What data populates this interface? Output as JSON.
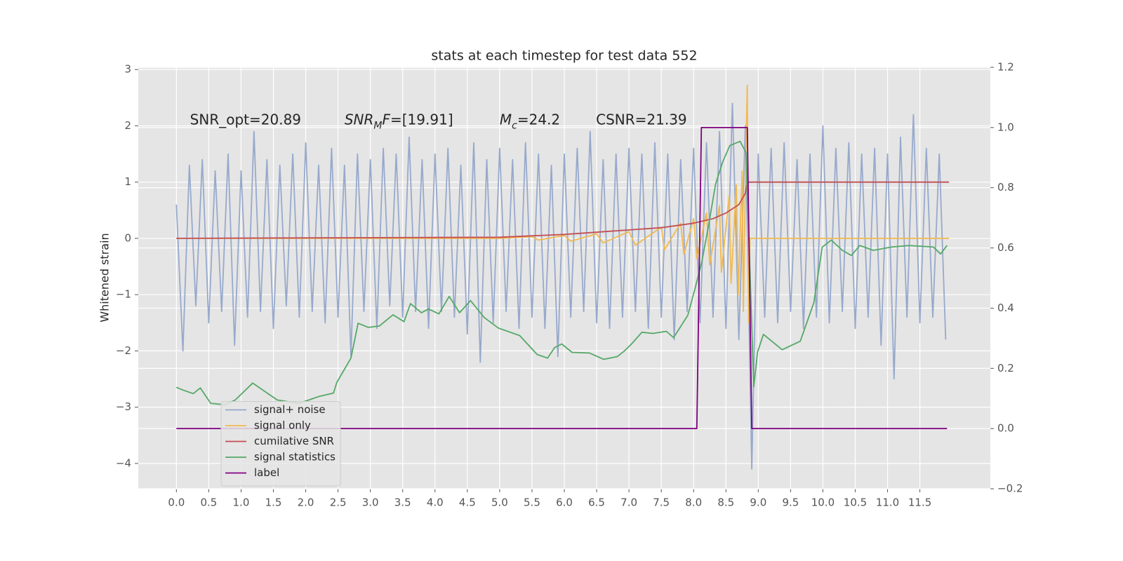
{
  "chart_data": {
    "type": "line",
    "title": "stats at each timestep for test data 552",
    "ylabel": "Whitened strain",
    "xlim": [
      -0.59,
      12.59
    ],
    "ylim": [
      -4.45,
      3.04
    ],
    "y2lim": [
      -0.2,
      1.2
    ],
    "xticks": [
      {
        "value": 0,
        "label": "0.0"
      },
      0.5,
      {
        "value": 1,
        "label": "1.0"
      },
      1.5,
      {
        "value": 2,
        "label": "2.0"
      },
      2.5,
      {
        "value": 3,
        "label": "3.0"
      },
      3.5,
      {
        "value": 4,
        "label": "4.0"
      },
      4.5,
      {
        "value": 5,
        "label": "5.0"
      },
      5.5,
      {
        "value": 6,
        "label": "6.0"
      },
      6.5,
      {
        "value": 7,
        "label": "7.0"
      },
      7.5,
      {
        "value": 8,
        "label": "8.0"
      },
      8.5,
      {
        "value": 9,
        "label": "9.0"
      },
      9.5,
      {
        "value": 10,
        "label": "10.0"
      },
      10.5,
      {
        "value": 11,
        "label": "11.0"
      },
      11.5
    ],
    "yticks": [
      {
        "value": -4,
        "label": "−4"
      },
      {
        "value": -3,
        "label": "−3"
      },
      {
        "value": -2,
        "label": "−2"
      },
      {
        "value": -1,
        "label": "−1"
      },
      0,
      1,
      2,
      3
    ],
    "y2ticks": [
      {
        "value": -0.2,
        "label": "−0.2"
      },
      {
        "value": 0,
        "label": "0.0"
      },
      0.2,
      0.4,
      0.6,
      0.8,
      {
        "value": 1,
        "label": "1.0"
      },
      1.2
    ],
    "grid": true,
    "legend": "lower left",
    "annotations": [
      {
        "x": 0.21,
        "y": 2.0,
        "parts": [
          {
            "text": "SNR_opt=20.89"
          }
        ]
      },
      {
        "x": 2.6,
        "y": 2.0,
        "parts": [
          {
            "text": "SNR",
            "italic": true
          },
          {
            "text": "M",
            "italic": true,
            "sub": true
          },
          {
            "text": "F",
            "italic": true
          },
          {
            "text": "=[19.91]"
          }
        ]
      },
      {
        "x": 5.0,
        "y": 2.0,
        "parts": [
          {
            "text": "M",
            "italic": true
          },
          {
            "text": "c",
            "italic": true,
            "sub": true
          },
          {
            "text": "=24.2"
          }
        ]
      },
      {
        "x": 6.49,
        "y": 2.0,
        "parts": [
          {
            "text": "CSNR=21.39"
          }
        ]
      }
    ],
    "series": [
      {
        "name": "signal+ noise",
        "color": "#97a9cc",
        "x": [
          0.0,
          0.1,
          0.2,
          0.3,
          0.4,
          0.5,
          0.6,
          0.7,
          0.8,
          0.9,
          1.0,
          1.1,
          1.2,
          1.3,
          1.4,
          1.5,
          1.6,
          1.7,
          1.8,
          1.9,
          2.0,
          2.1,
          2.2,
          2.3,
          2.4,
          2.5,
          2.6,
          2.7,
          2.8,
          2.9,
          3.0,
          3.1,
          3.2,
          3.3,
          3.4,
          3.5,
          3.6,
          3.7,
          3.8,
          3.9,
          4.0,
          4.1,
          4.2,
          4.3,
          4.4,
          4.5,
          4.6,
          4.7,
          4.8,
          4.9,
          5.0,
          5.1,
          5.2,
          5.3,
          5.4,
          5.5,
          5.6,
          5.7,
          5.8,
          5.9,
          6.0,
          6.1,
          6.2,
          6.3,
          6.4,
          6.5,
          6.6,
          6.7,
          6.8,
          6.9,
          7.0,
          7.1,
          7.2,
          7.3,
          7.4,
          7.5,
          7.6,
          7.7,
          7.8,
          7.9,
          8.0,
          8.1,
          8.2,
          8.3,
          8.4,
          8.5,
          8.6,
          8.7,
          8.8,
          8.9,
          9.0,
          9.1,
          9.2,
          9.3,
          9.4,
          9.5,
          9.6,
          9.7,
          9.8,
          9.9,
          10.0,
          10.1,
          10.2,
          10.3,
          10.4,
          10.5,
          10.6,
          10.7,
          10.8,
          10.9,
          11.0,
          11.1,
          11.2,
          11.3,
          11.4,
          11.5,
          11.6,
          11.7,
          11.8,
          11.9
        ],
        "values": [
          0.6,
          -2.0,
          1.3,
          -1.2,
          1.4,
          -1.5,
          1.2,
          -1.3,
          1.5,
          -1.9,
          1.2,
          -1.4,
          1.9,
          -1.3,
          1.4,
          -1.6,
          1.3,
          -1.2,
          1.5,
          -1.4,
          1.7,
          -1.3,
          1.3,
          -1.5,
          1.6,
          -1.4,
          1.3,
          -2.1,
          1.5,
          -1.3,
          1.4,
          -1.6,
          1.6,
          -1.2,
          1.5,
          -1.4,
          1.8,
          -1.3,
          1.4,
          -1.6,
          1.5,
          -1.3,
          1.6,
          -1.4,
          1.3,
          -1.7,
          1.7,
          -2.2,
          1.4,
          -1.5,
          1.6,
          -1.3,
          1.4,
          -1.6,
          1.7,
          -1.4,
          1.5,
          -1.6,
          1.3,
          -2.1,
          1.5,
          -1.4,
          1.6,
          -1.3,
          1.9,
          -1.5,
          1.4,
          -1.6,
          1.5,
          -1.4,
          1.6,
          -1.3,
          1.5,
          -1.6,
          1.7,
          -1.4,
          1.5,
          -1.8,
          1.4,
          -1.3,
          1.6,
          -1.5,
          1.7,
          -1.4,
          1.9,
          -1.6,
          2.4,
          -1.8,
          2.0,
          -4.1,
          1.5,
          -1.4,
          1.6,
          -1.5,
          1.7,
          -1.3,
          1.4,
          -1.6,
          1.5,
          -1.4,
          2.0,
          -1.5,
          1.6,
          -1.3,
          1.7,
          -1.6,
          1.5,
          -1.4,
          1.6,
          -1.9,
          1.5,
          -2.5,
          1.8,
          -1.4,
          2.2,
          -1.5,
          1.6,
          -1.4,
          1.5,
          -1.8
        ]
      },
      {
        "name": "signal only",
        "color": "#f2b94f",
        "x": [
          0.0,
          5.0,
          5.5,
          5.6,
          6.0,
          6.1,
          6.5,
          6.6,
          7.0,
          7.1,
          7.5,
          7.55,
          7.8,
          7.85,
          8.0,
          8.05,
          8.2,
          8.25,
          8.4,
          8.43,
          8.55,
          8.58,
          8.66,
          8.69,
          8.75,
          8.77,
          8.81,
          8.83,
          8.85,
          8.87,
          11.95
        ],
        "values": [
          0,
          0,
          0.03,
          -0.03,
          0.05,
          -0.05,
          0.08,
          -0.08,
          0.12,
          -0.12,
          0.2,
          -0.2,
          0.27,
          -0.28,
          0.35,
          -0.36,
          0.45,
          -0.47,
          0.58,
          -0.6,
          0.75,
          -0.8,
          0.95,
          -1.0,
          1.2,
          -1.3,
          1.6,
          2.72,
          -1.5,
          0,
          0
        ]
      },
      {
        "name": "cumilative SNR",
        "color": "#c44e52",
        "x": [
          0,
          5,
          6,
          7,
          7.5,
          8,
          8.3,
          8.5,
          8.7,
          8.8,
          8.83,
          11.95
        ],
        "values": [
          0,
          0.02,
          0.07,
          0.15,
          0.19,
          0.27,
          0.35,
          0.45,
          0.6,
          0.8,
          1.0,
          1.0
        ]
      },
      {
        "name": "signal statistics",
        "color": "#55a868",
        "axis": "y2",
        "x": [
          0.0,
          0.1,
          0.26,
          0.37,
          0.53,
          0.75,
          0.91,
          1.18,
          1.56,
          1.89,
          2.05,
          2.21,
          2.43,
          2.48,
          2.7,
          2.81,
          2.97,
          3.14,
          3.35,
          3.52,
          3.62,
          3.79,
          3.9,
          4.06,
          4.22,
          4.38,
          4.55,
          4.76,
          4.98,
          5.31,
          5.58,
          5.74,
          5.85,
          5.96,
          6.12,
          6.39,
          6.61,
          6.82,
          6.93,
          7.04,
          7.2,
          7.37,
          7.58,
          7.69,
          7.91,
          8.02,
          8.13,
          8.23,
          8.34,
          8.45,
          8.56,
          8.72,
          8.81,
          8.86,
          8.93,
          8.99,
          9.08,
          9.37,
          9.65,
          9.86,
          9.99,
          10.13,
          10.3,
          10.44,
          10.57,
          10.78,
          11.06,
          11.33,
          11.71,
          11.82,
          11.92
        ],
        "values": [
          0.137,
          0.128,
          0.116,
          0.135,
          0.084,
          0.079,
          0.095,
          0.151,
          0.095,
          0.084,
          0.095,
          0.107,
          0.118,
          0.153,
          0.234,
          0.35,
          0.336,
          0.341,
          0.378,
          0.355,
          0.415,
          0.385,
          0.397,
          0.381,
          0.439,
          0.385,
          0.425,
          0.369,
          0.334,
          0.309,
          0.246,
          0.234,
          0.269,
          0.281,
          0.253,
          0.251,
          0.23,
          0.239,
          0.258,
          0.281,
          0.32,
          0.316,
          0.323,
          0.302,
          0.376,
          0.464,
          0.557,
          0.673,
          0.812,
          0.886,
          0.94,
          0.954,
          0.917,
          0.603,
          0.139,
          0.255,
          0.313,
          0.262,
          0.29,
          0.418,
          0.603,
          0.626,
          0.592,
          0.575,
          0.608,
          0.592,
          0.603,
          0.608,
          0.603,
          0.58,
          0.608
        ]
      },
      {
        "name": "label",
        "color": "#800080",
        "axis": "y2",
        "x": [
          0,
          8.05,
          8.12,
          8.83,
          8.9,
          11.92
        ],
        "values": [
          0,
          0,
          1,
          1,
          0,
          0
        ]
      }
    ]
  }
}
